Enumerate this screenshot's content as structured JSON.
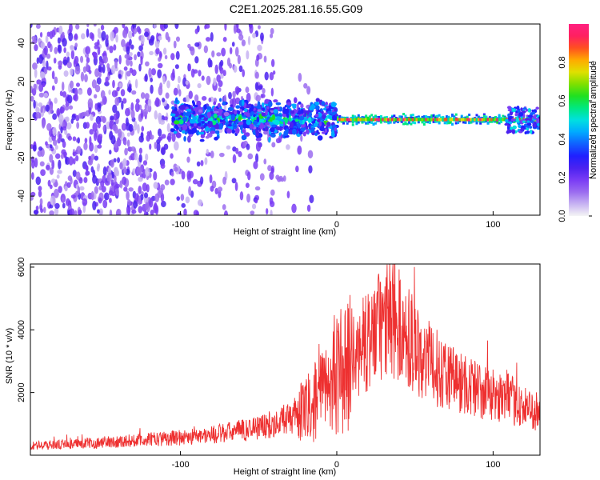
{
  "title": "C2E1.2025.281.16.55.G09",
  "chart_data": [
    {
      "type": "heatmap",
      "name": "spectrogram",
      "xlabel": "Height of straight line (km)",
      "ylabel": "Frequency (Hz)",
      "xlim": [
        -196,
        130
      ],
      "ylim": [
        -50,
        50
      ],
      "xticks": [
        -100,
        0,
        100
      ],
      "xtick_labels": [
        "-100",
        "0",
        "100"
      ],
      "yticks": [
        -40,
        -20,
        0,
        20,
        40
      ],
      "ytick_labels": [
        "-40",
        "-20",
        "0",
        "20",
        "40"
      ],
      "colorbar": {
        "label": "Normalized spectral amplitude",
        "range": [
          0,
          1
        ],
        "ticks": [
          0.0,
          0.2,
          0.4,
          0.6,
          0.8
        ],
        "tick_labels": [
          "0.0",
          "0.2",
          "0.4",
          "0.6",
          "0.8"
        ],
        "colors": [
          "#f5f5f5",
          "#c7b3f2",
          "#9b6cf0",
          "#7a3cf5",
          "#4b22f0",
          "#2020ff",
          "#1060ff",
          "#00aaff",
          "#00e0e0",
          "#00e880",
          "#20e020",
          "#80e000",
          "#e0e000",
          "#ffaa00",
          "#ff5020",
          "#ff2060",
          "#ff2080"
        ]
      },
      "features": [
        {
          "region": "noise",
          "x_range": [
            -196,
            -35
          ],
          "note": "scattered low-amplitude speckle"
        },
        {
          "region": "transition",
          "x_range": [
            -105,
            0
          ],
          "freq_half_width_hz": 8
        },
        {
          "region": "signal_carrier",
          "x_range": [
            0,
            130
          ],
          "freq_hz": 0,
          "peak_amplitude": 1.0
        }
      ]
    },
    {
      "type": "line",
      "name": "snr",
      "xlabel": "Height of straight line (km)",
      "ylabel": "SNR (10 * v/v)",
      "xlim": [
        -196,
        130
      ],
      "ylim": [
        0,
        6100
      ],
      "xticks": [
        -100,
        0,
        100
      ],
      "xtick_labels": [
        "-100",
        "0",
        "100"
      ],
      "yticks": [
        2000,
        4000,
        6000
      ],
      "ytick_labels": [
        "2000",
        "4000",
        "6000"
      ],
      "color": "#ee3030",
      "envelope": {
        "x": [
          -196,
          -150,
          -120,
          -100,
          -80,
          -60,
          -40,
          -20,
          -10,
          0,
          10,
          20,
          30,
          35,
          45,
          60,
          80,
          100,
          110,
          120,
          130
        ],
        "y": [
          300,
          400,
          500,
          560,
          650,
          800,
          1000,
          1400,
          1900,
          2600,
          3000,
          3700,
          4200,
          4400,
          3800,
          2900,
          2300,
          1900,
          1800,
          1500,
          1400
        ]
      }
    }
  ]
}
